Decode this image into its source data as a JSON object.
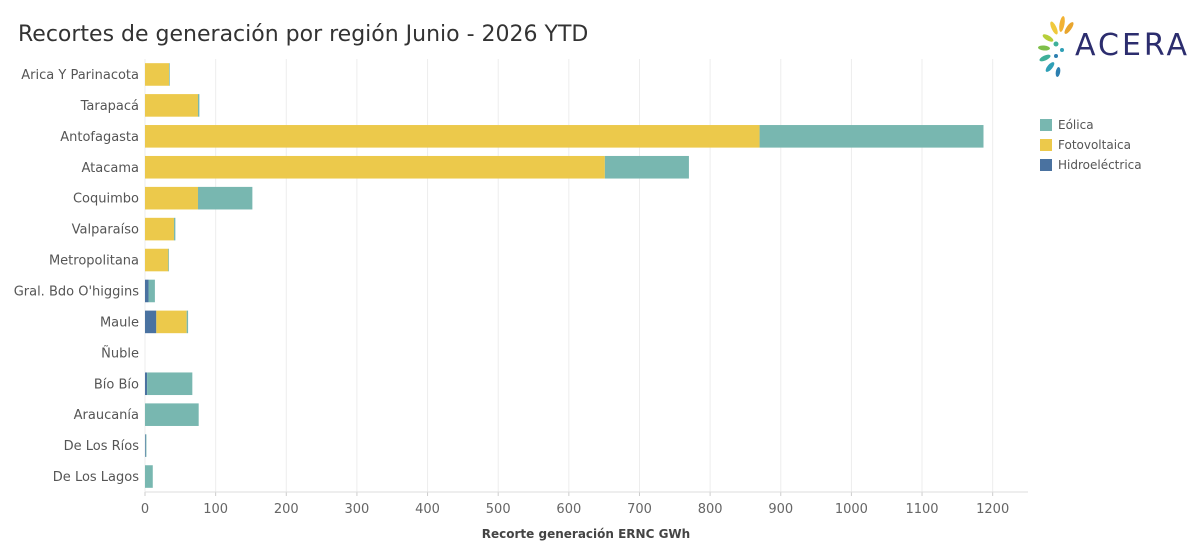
{
  "title": "Recortes de generación por región Junio - 2026 YTD",
  "logo": {
    "name": "ACERA"
  },
  "legend": [
    {
      "label": "Eólica",
      "color": "#78b7b0"
    },
    {
      "label": "Fotovoltaica",
      "color": "#ecc94b"
    },
    {
      "label": "Hidroeléctrica",
      "color": "#4a72a0"
    }
  ],
  "chart_data": {
    "type": "bar",
    "orientation": "horizontal",
    "stacked": true,
    "xlabel": "Recorte generación ERNC GWh",
    "xlim": [
      0,
      1250
    ],
    "xticks": [
      0,
      100,
      200,
      300,
      400,
      500,
      600,
      700,
      800,
      900,
      1000,
      1100,
      1200
    ],
    "grid": "vertical",
    "legend_position": "right",
    "categories": [
      "Arica Y Parinacota",
      "Tarapacá",
      "Antofagasta",
      "Atacama",
      "Coquimbo",
      "Valparaíso",
      "Metropolitana",
      "Gral. Bdo O'higgins",
      "Maule",
      "Ñuble",
      "Bío Bío",
      "Araucanía",
      "De Los Ríos",
      "De Los Lagos"
    ],
    "series": [
      {
        "name": "Hidroeléctrica",
        "color": "#4a72a0",
        "values": [
          0,
          0,
          0,
          0,
          0,
          0,
          0,
          5,
          16,
          0,
          3,
          0,
          1,
          0
        ]
      },
      {
        "name": "Fotovoltaica",
        "color": "#ecc94b",
        "values": [
          34,
          75,
          870,
          651,
          75,
          41,
          33,
          0,
          43,
          0,
          0,
          0,
          0,
          0
        ]
      },
      {
        "name": "Eólica",
        "color": "#78b7b0",
        "values": [
          1,
          2,
          317,
          119,
          77,
          2,
          1,
          9,
          2,
          0,
          64,
          76,
          1,
          11
        ]
      }
    ]
  }
}
